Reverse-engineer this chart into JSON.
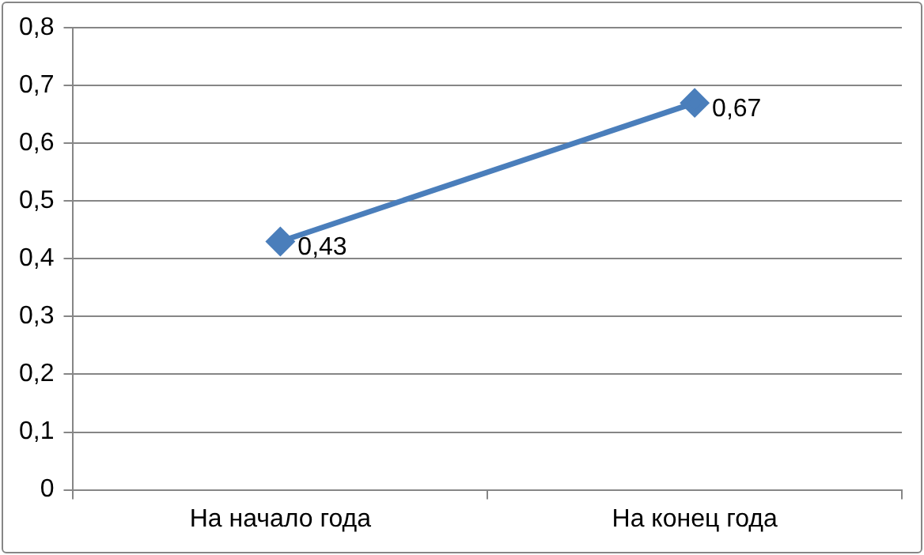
{
  "chart_data": {
    "type": "line",
    "categories": [
      "На начало года",
      "На конец года"
    ],
    "series": [
      {
        "color": "#4a7ebb",
        "values": [
          0.43,
          0.67
        ],
        "value_labels": [
          "0,43",
          "0,67"
        ]
      }
    ],
    "ylim": [
      0,
      0.8
    ],
    "yticks": [
      0,
      {
        "value": 0.1,
        "label": "0,1"
      },
      {
        "value": 0.2,
        "label": "0,2"
      },
      {
        "value": 0.3,
        "label": "0,3"
      },
      {
        "value": 0.4,
        "label": "0,4"
      },
      {
        "value": 0.5,
        "label": "0,5"
      },
      {
        "value": 0.6,
        "label": "0,6"
      },
      {
        "value": 0.7,
        "label": "0,7"
      },
      {
        "value": 0.8,
        "label": "0,8"
      }
    ],
    "grid": "y",
    "legend": false,
    "marker": "diamond",
    "line_style": "solid"
  }
}
